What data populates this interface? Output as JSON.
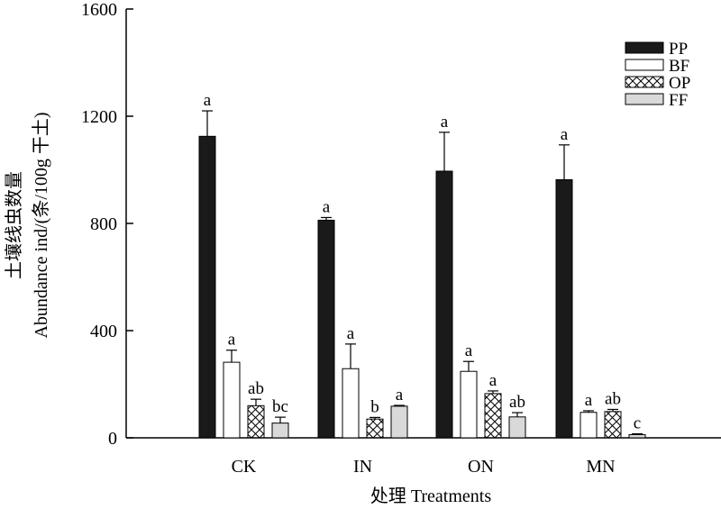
{
  "chart_data": {
    "type": "bar",
    "ylabel_cn": "土壤线虫数量",
    "ylabel_en": "Abundance ind/(条/100g 干土)",
    "xlabel": "处理 Treatments",
    "ylim": [
      0,
      1600
    ],
    "yticks": [
      0,
      400,
      800,
      1200,
      1600
    ],
    "categories": [
      "CK",
      "IN",
      "ON",
      "MN"
    ],
    "legend_position": "top-right",
    "series": [
      {
        "name": "PP",
        "fill": "solid",
        "color": "#1a1a1a",
        "values": [
          1125,
          812,
          995,
          963
        ],
        "errors": [
          95,
          10,
          145,
          130
        ],
        "letters": [
          "a",
          "a",
          "a",
          "a"
        ]
      },
      {
        "name": "BF",
        "fill": "white",
        "color": "#ffffff",
        "values": [
          282,
          258,
          248,
          95
        ],
        "errors": [
          45,
          92,
          37,
          6
        ],
        "letters": [
          "a",
          "a",
          "a",
          "a"
        ]
      },
      {
        "name": "OP",
        "fill": "crosshatch",
        "color": "#ffffff",
        "values": [
          120,
          70,
          165,
          98
        ],
        "errors": [
          24,
          6,
          10,
          8
        ],
        "letters": [
          "ab",
          "b",
          "a",
          "ab"
        ]
      },
      {
        "name": "FF",
        "fill": "light-gray",
        "color": "#d9d9d9",
        "values": [
          55,
          118,
          null,
          12
        ],
        "errors": [
          22,
          3,
          null,
          3
        ],
        "letters": [
          "bc",
          "a",
          null,
          "c"
        ]
      }
    ],
    "extra_points": [
      {
        "category": "ON",
        "series": "FF",
        "value": 78,
        "error": 16,
        "letter": "ab"
      }
    ]
  }
}
